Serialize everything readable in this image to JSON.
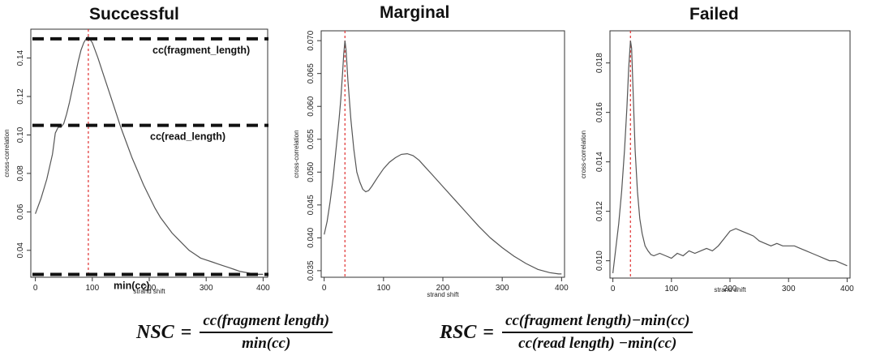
{
  "chart_data": [
    {
      "type": "line",
      "title": "Successful",
      "xlabel": "strand shift",
      "ylabel": "cross-correlation",
      "xlim": [
        -8,
        408
      ],
      "ylim": [
        0.026,
        0.155
      ],
      "xticks": [
        0,
        100,
        200,
        300,
        400
      ],
      "yticks": [
        0.04,
        0.06,
        0.08,
        0.1,
        0.12,
        0.14
      ],
      "ytick_labels": [
        "0.04",
        "0.06",
        "0.08",
        "0.10",
        "0.12",
        "0.14"
      ],
      "marker_x": 93,
      "x": [
        0,
        10,
        20,
        30,
        35,
        40,
        45,
        50,
        55,
        60,
        65,
        70,
        75,
        80,
        85,
        90,
        93,
        100,
        110,
        120,
        130,
        140,
        150,
        160,
        170,
        180,
        190,
        200,
        210,
        220,
        230,
        240,
        250,
        260,
        270,
        280,
        290,
        300,
        310,
        320,
        330,
        340,
        350,
        360,
        370,
        380,
        390,
        400
      ],
      "y": [
        0.059,
        0.067,
        0.077,
        0.09,
        0.101,
        0.104,
        0.104,
        0.106,
        0.111,
        0.117,
        0.124,
        0.131,
        0.138,
        0.144,
        0.148,
        0.1505,
        0.151,
        0.148,
        0.14,
        0.131,
        0.122,
        0.113,
        0.104,
        0.096,
        0.088,
        0.081,
        0.074,
        0.068,
        0.062,
        0.057,
        0.053,
        0.049,
        0.046,
        0.043,
        0.04,
        0.038,
        0.036,
        0.035,
        0.034,
        0.033,
        0.032,
        0.031,
        0.03,
        0.029,
        0.0285,
        0.028,
        0.0275,
        0.0275
      ],
      "reference_lines": [
        {
          "label": "cc(fragment_length)",
          "y": 0.15
        },
        {
          "label": "cc(read_length)",
          "y": 0.105
        },
        {
          "label": "min(cc)",
          "y": 0.0275
        }
      ]
    },
    {
      "type": "line",
      "title": "Marginal",
      "xlabel": "strand shift",
      "ylabel": "cross-correlation",
      "xlim": [
        -5,
        405
      ],
      "ylim": [
        0.034,
        0.0715
      ],
      "xticks": [
        0,
        100,
        200,
        300,
        400
      ],
      "yticks": [
        0.035,
        0.04,
        0.045,
        0.05,
        0.055,
        0.06,
        0.065,
        0.07
      ],
      "ytick_labels": [
        "0.035",
        "0.040",
        "0.045",
        "0.050",
        "0.055",
        "0.060",
        "0.065",
        "0.070"
      ],
      "marker_x": 35,
      "x": [
        0,
        5,
        10,
        15,
        20,
        25,
        28,
        31,
        33,
        35,
        37,
        40,
        45,
        50,
        55,
        60,
        65,
        70,
        75,
        80,
        90,
        100,
        110,
        120,
        130,
        140,
        150,
        160,
        170,
        180,
        190,
        200,
        220,
        240,
        260,
        280,
        300,
        320,
        340,
        360,
        380,
        395,
        400
      ],
      "y": [
        0.0405,
        0.0425,
        0.0455,
        0.049,
        0.0535,
        0.058,
        0.061,
        0.065,
        0.068,
        0.07,
        0.0685,
        0.064,
        0.058,
        0.0535,
        0.05,
        0.0485,
        0.0474,
        0.047,
        0.0472,
        0.0478,
        0.0492,
        0.0505,
        0.0515,
        0.0522,
        0.0527,
        0.0528,
        0.0525,
        0.0518,
        0.0508,
        0.0498,
        0.0488,
        0.0478,
        0.0458,
        0.0438,
        0.0418,
        0.04,
        0.0385,
        0.0372,
        0.0361,
        0.0352,
        0.0347,
        0.0345,
        0.0345
      ]
    },
    {
      "type": "line",
      "title": "Failed",
      "xlabel": "strand shift",
      "ylabel": "cross-correlation",
      "xlim": [
        -5,
        405
      ],
      "ylim": [
        0.0093,
        0.0193
      ],
      "xticks": [
        0,
        100,
        200,
        300,
        400
      ],
      "yticks": [
        0.01,
        0.012,
        0.014,
        0.016,
        0.018
      ],
      "ytick_labels": [
        "0.010",
        "0.012",
        "0.014",
        "0.016",
        "0.018"
      ],
      "marker_x": 30,
      "x": [
        0,
        5,
        10,
        15,
        20,
        24,
        27,
        30,
        32,
        35,
        38,
        42,
        46,
        50,
        55,
        60,
        65,
        70,
        80,
        90,
        100,
        110,
        120,
        130,
        140,
        150,
        160,
        170,
        180,
        190,
        200,
        210,
        220,
        230,
        240,
        250,
        260,
        270,
        280,
        290,
        300,
        310,
        320,
        330,
        340,
        350,
        360,
        370,
        380,
        390,
        400
      ],
      "y": [
        0.0095,
        0.0105,
        0.0115,
        0.0128,
        0.0145,
        0.0162,
        0.0178,
        0.0189,
        0.0186,
        0.0165,
        0.0145,
        0.0128,
        0.0117,
        0.0111,
        0.0106,
        0.0104,
        0.01025,
        0.0102,
        0.0103,
        0.0102,
        0.0101,
        0.0103,
        0.0102,
        0.0104,
        0.0103,
        0.0104,
        0.0105,
        0.0104,
        0.0106,
        0.0109,
        0.0112,
        0.0113,
        0.0112,
        0.0111,
        0.011,
        0.0108,
        0.0107,
        0.0106,
        0.0107,
        0.0106,
        0.0106,
        0.0106,
        0.0105,
        0.0104,
        0.0103,
        0.0102,
        0.0101,
        0.01,
        0.01,
        0.0099,
        0.0098
      ]
    }
  ],
  "formulas": {
    "nsc": {
      "lhs": "NSC",
      "eq": "=",
      "numerator": "cc(fragment length)",
      "denominator": "min(cc)"
    },
    "rsc": {
      "lhs": "RSC",
      "eq": "=",
      "numerator": "cc(fragment length)−min(cc)",
      "denominator": "cc(read length) −min(cc)"
    }
  }
}
